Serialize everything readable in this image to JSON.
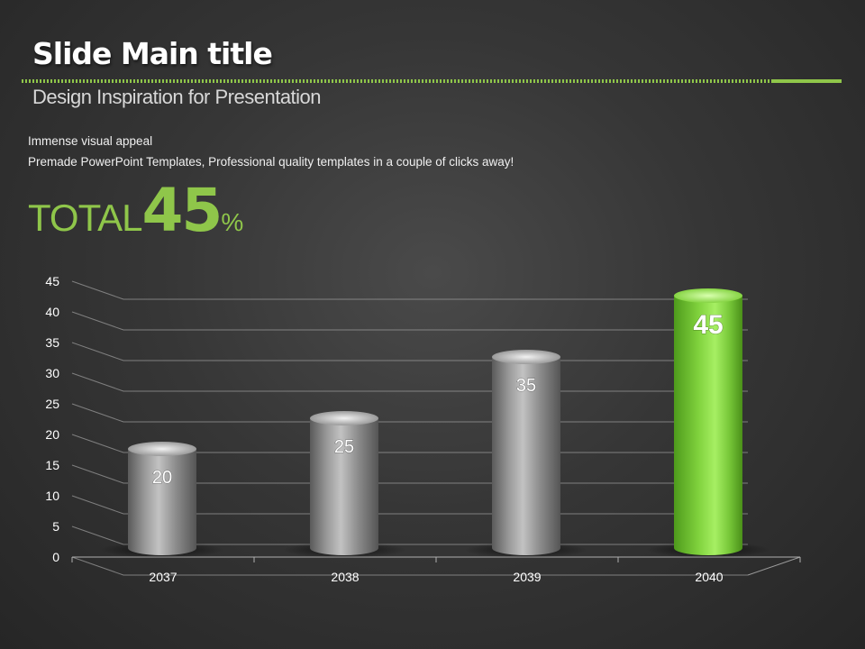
{
  "slide": {
    "title": "Slide Main title",
    "subtitle": "Design Inspiration for Presentation",
    "body_line1": "Immense visual appeal",
    "body_line2": "Premade PowerPoint Templates, Professional quality templates in a couple of clicks away!",
    "total_label": "TOTAL",
    "total_value": "45",
    "total_unit": "%"
  },
  "colors": {
    "accent": "#8fc64a",
    "bar_gray": "#8a8a8a",
    "bar_green": "#7cc43a",
    "background": "#3a3a3a"
  },
  "chart_data": {
    "type": "bar",
    "categories": [
      "2037",
      "2038",
      "2039",
      "2040"
    ],
    "values": [
      20,
      25,
      35,
      45
    ],
    "data_labels": [
      "20",
      "25",
      "35",
      "45"
    ],
    "highlight_index": 3,
    "ylim": [
      0,
      45
    ],
    "yticks": [
      0,
      5,
      10,
      15,
      20,
      25,
      30,
      35,
      40,
      45
    ],
    "grid": true,
    "title": "",
    "xlabel": "",
    "ylabel": ""
  }
}
